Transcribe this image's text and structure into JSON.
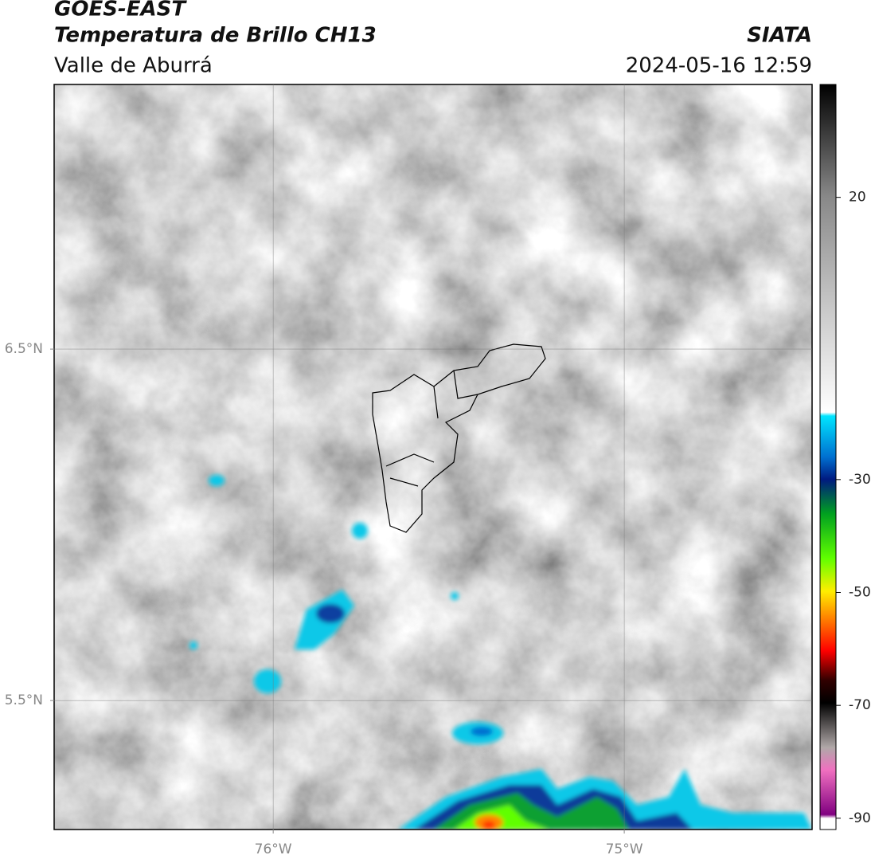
{
  "chart_data": {
    "type": "map",
    "title": "GOES-EAST",
    "subtitle": "Temperatura de Brillo CH13",
    "region": "Valle de Aburrá",
    "source": "SIATA",
    "datetime": "2024-05-16 12:59",
    "xlim": [
      -76.624,
      -74.465
    ],
    "ylim": [
      5.133,
      7.253
    ],
    "xticks": [
      {
        "value": -76,
        "label": "76°W"
      },
      {
        "value": -75,
        "label": "75°W"
      }
    ],
    "yticks": [
      {
        "value": 6.5,
        "label": "6.5°N"
      },
      {
        "value": 5.5,
        "label": "5.5°N"
      }
    ],
    "grid": true,
    "colorbar": {
      "lim": [
        -92,
        40
      ],
      "ticks": [
        20,
        -30,
        -50,
        -70,
        -90
      ]
    }
  }
}
